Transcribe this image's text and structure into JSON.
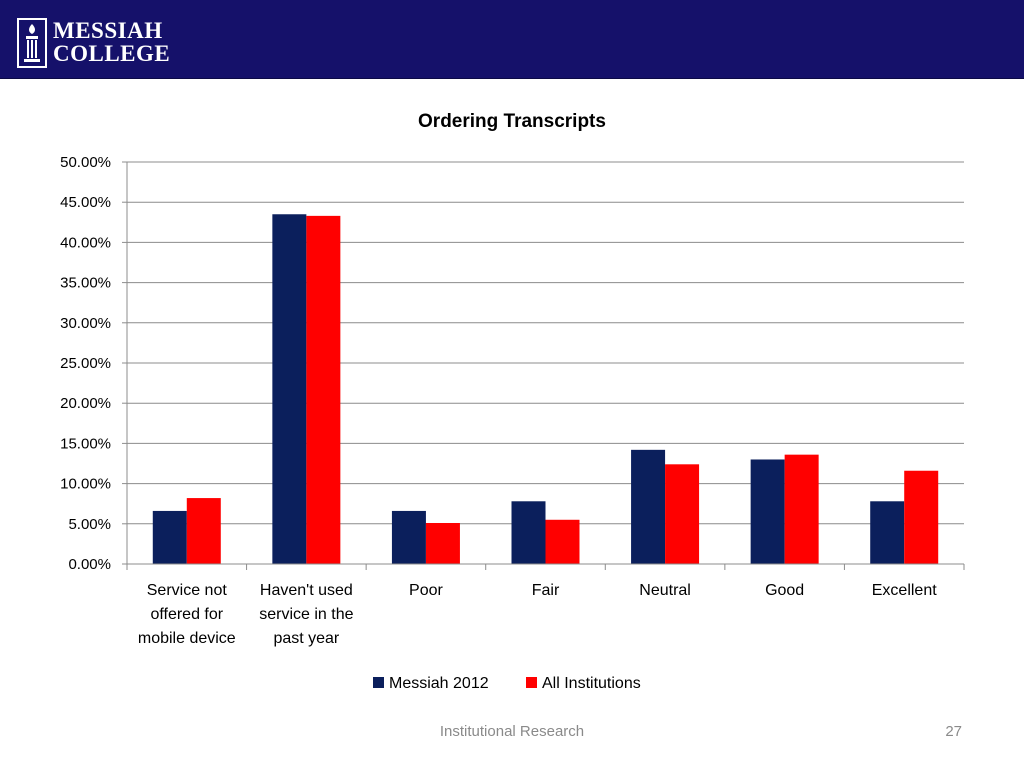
{
  "header": {
    "logo_line1": "MESSIAH",
    "logo_line2": "COLLEGE",
    "background_color": "#15116a"
  },
  "chart_data": {
    "type": "bar",
    "title": "Ordering Transcripts",
    "categories": [
      [
        "Service not",
        "offered for",
        "mobile device"
      ],
      [
        "Haven't used",
        "service in the",
        "past year"
      ],
      [
        "Poor"
      ],
      [
        "Fair"
      ],
      [
        "Neutral"
      ],
      [
        "Good"
      ],
      [
        "Excellent"
      ]
    ],
    "series": [
      {
        "name": "Messiah 2012",
        "color": "#0b1f5c",
        "values": [
          6.6,
          43.5,
          6.6,
          7.8,
          14.2,
          13.0,
          7.8
        ]
      },
      {
        "name": "All Institutions",
        "color": "#ff0000",
        "values": [
          8.2,
          43.3,
          5.1,
          5.5,
          12.4,
          13.6,
          11.6
        ]
      }
    ],
    "ylim": [
      0,
      50
    ],
    "yticks": [
      "0.00%",
      "5.00%",
      "10.00%",
      "15.00%",
      "20.00%",
      "25.00%",
      "30.00%",
      "35.00%",
      "40.00%",
      "45.00%",
      "50.00%"
    ],
    "grid": true,
    "legend_position": "bottom"
  },
  "footer": {
    "text": "Institutional Research",
    "page_number": "27"
  }
}
